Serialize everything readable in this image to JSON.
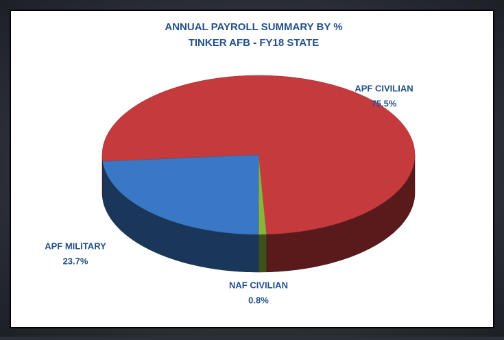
{
  "chart_data": {
    "type": "pie",
    "title": "ANNUAL PAYROLL SUMMARY BY %",
    "subtitle": "TINKER AFB - FY18 STATE",
    "categories": [
      "APF CIVILIAN",
      "NAF CIVILIAN",
      "APF MILITARY"
    ],
    "values": [
      75.5,
      0.8,
      23.7
    ],
    "value_labels": [
      "75.5%",
      "0.8%",
      "23.7%"
    ],
    "colors": [
      "#c53a3c",
      "#8cb43c",
      "#3a78c6"
    ]
  }
}
